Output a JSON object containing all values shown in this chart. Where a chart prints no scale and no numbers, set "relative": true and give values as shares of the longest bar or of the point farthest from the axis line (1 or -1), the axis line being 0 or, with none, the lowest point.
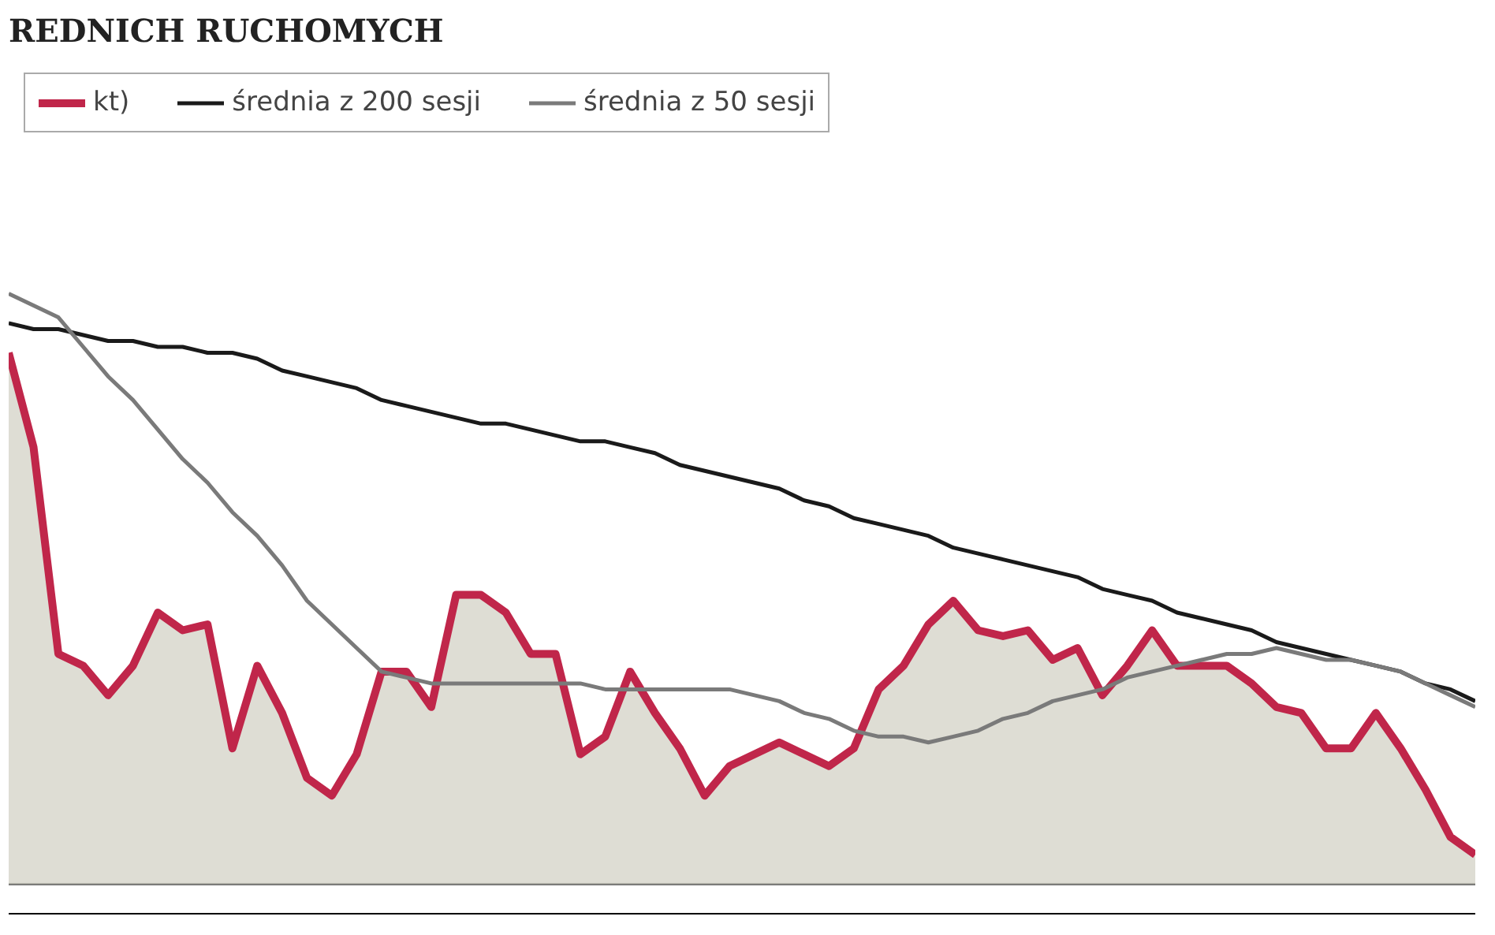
{
  "chart_data": {
    "type": "line",
    "title": "REDNICH RUCHOMYCH",
    "relative": true,
    "legend": "top left",
    "categories": [
      null,
      null,
      null,
      null,
      null,
      null,
      null,
      null,
      null,
      null,
      null,
      null,
      null,
      null,
      null,
      null,
      null,
      null,
      null,
      null,
      null,
      null,
      null,
      null,
      null,
      null,
      null,
      null,
      null,
      null,
      null,
      null,
      null,
      null,
      null,
      null,
      null,
      null,
      null,
      null,
      null,
      null,
      null,
      null,
      null,
      null,
      null,
      null,
      null,
      null,
      null,
      null,
      null,
      null,
      null,
      null,
      null,
      null,
      null,
      null
    ],
    "series": [
      {
        "name": "kt)",
        "type": "area",
        "color": "#c0264a",
        "values": [
          0.9,
          0.74,
          0.39,
          0.37,
          0.32,
          0.37,
          0.46,
          0.43,
          0.44,
          0.23,
          0.37,
          0.29,
          0.18,
          0.15,
          0.22,
          0.36,
          0.36,
          0.3,
          0.49,
          0.49,
          0.46,
          0.39,
          0.39,
          0.22,
          0.25,
          0.36,
          0.29,
          0.23,
          0.15,
          0.2,
          0.22,
          0.24,
          0.22,
          0.2,
          0.23,
          0.33,
          0.37,
          0.44,
          0.48,
          0.43,
          0.42,
          0.43,
          0.38,
          0.4,
          0.32,
          0.37,
          0.43,
          0.37,
          0.37,
          0.37,
          0.34,
          0.3,
          0.29,
          0.23,
          0.23,
          0.29,
          0.23,
          0.16,
          0.08,
          0.05
        ]
      },
      {
        "name": "średnia z 200 sesji",
        "color": "#1a1a1a",
        "values": [
          0.95,
          0.94,
          0.94,
          0.93,
          0.92,
          0.92,
          0.91,
          0.91,
          0.9,
          0.9,
          0.89,
          0.87,
          0.86,
          0.85,
          0.84,
          0.82,
          0.81,
          0.8,
          0.79,
          0.78,
          0.78,
          0.77,
          0.76,
          0.75,
          0.75,
          0.74,
          0.73,
          0.71,
          0.7,
          0.69,
          0.68,
          0.67,
          0.65,
          0.64,
          0.62,
          0.61,
          0.6,
          0.59,
          0.57,
          0.56,
          0.55,
          0.54,
          0.53,
          0.52,
          0.5,
          0.49,
          0.48,
          0.46,
          0.45,
          0.44,
          0.43,
          0.41,
          0.4,
          0.39,
          0.38,
          0.37,
          0.36,
          0.34,
          0.33,
          0.31
        ]
      },
      {
        "name": "średnia z 50 sesji",
        "color": "#7a7a7a",
        "values": [
          1.0,
          0.98,
          0.96,
          0.91,
          0.86,
          0.82,
          0.77,
          0.72,
          0.68,
          0.63,
          0.59,
          0.54,
          0.48,
          0.44,
          0.4,
          0.36,
          0.35,
          0.34,
          0.34,
          0.34,
          0.34,
          0.34,
          0.34,
          0.34,
          0.33,
          0.33,
          0.33,
          0.33,
          0.33,
          0.33,
          0.32,
          0.31,
          0.29,
          0.28,
          0.26,
          0.25,
          0.25,
          0.24,
          0.25,
          0.26,
          0.28,
          0.29,
          0.31,
          0.32,
          0.33,
          0.35,
          0.36,
          0.37,
          0.38,
          0.39,
          0.39,
          0.4,
          0.39,
          0.38,
          0.38,
          0.37,
          0.36,
          0.34,
          0.32,
          0.3
        ]
      }
    ]
  }
}
